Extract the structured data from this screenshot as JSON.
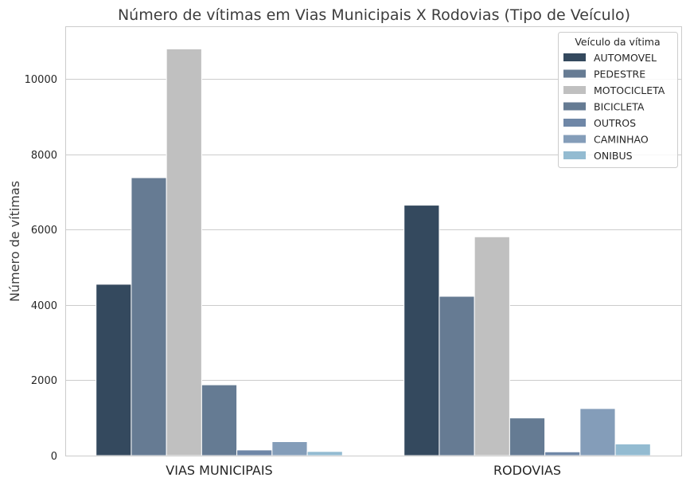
{
  "chart_data": {
    "type": "bar",
    "title": "Número de vítimas em Vias Municipais X Rodovias (Tipo de Veículo)",
    "xlabel": "",
    "ylabel": "Número de vítimas",
    "categories": [
      "VIAS MUNICIPAIS",
      "RODOVIAS"
    ],
    "ylim": [
      0,
      11400
    ],
    "yticks": [
      0,
      2000,
      4000,
      6000,
      8000,
      10000
    ],
    "grid": true,
    "legend": {
      "title": "Veículo da vítima",
      "placement": "top-right"
    },
    "series": [
      {
        "name": "AUTOMOVEL",
        "color": "#34495e",
        "values": [
          4550,
          6650
        ]
      },
      {
        "name": "PEDESTRE",
        "color": "#667b93",
        "values": [
          7380,
          4230
        ]
      },
      {
        "name": "MOTOCICLETA",
        "color": "#c0c0c0",
        "values": [
          10800,
          5810
        ]
      },
      {
        "name": "BICICLETA",
        "color": "#657b93",
        "values": [
          1880,
          1000
        ]
      },
      {
        "name": "OUTROS",
        "color": "#6f87a7",
        "values": [
          150,
          100
        ]
      },
      {
        "name": "CAMINHAO",
        "color": "#849db9",
        "values": [
          370,
          1250
        ]
      },
      {
        "name": "ONIBUS",
        "color": "#93bbd1",
        "values": [
          110,
          310
        ]
      }
    ]
  }
}
